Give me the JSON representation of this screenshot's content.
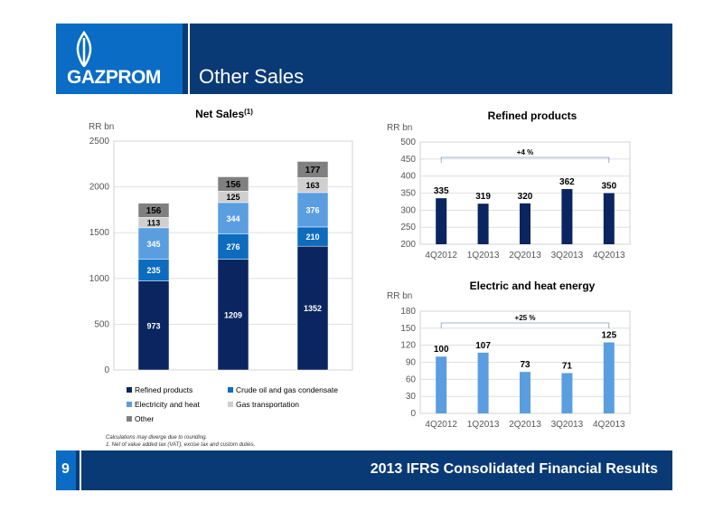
{
  "header": {
    "logo_text": "GAZPROM",
    "title": "Other Sales"
  },
  "footer": {
    "page_number": "9",
    "title": "2013 IFRS Consolidated Financial Results"
  },
  "notes": [
    "Calculations may diverge due to rounding.",
    "1. Net of value added tax (VAT), excise tax and custom duties."
  ],
  "colors": {
    "header_bg": "#0a3a75",
    "logo_bg": "#0a6cc4",
    "refined": "#0a2560",
    "crude": "#0e6cbe",
    "electricity": "#5b9ee0",
    "gas_transport": "#cfcfcf",
    "other": "#808080"
  },
  "chart_data": [
    {
      "type": "bar",
      "stacked": true,
      "title": "Net Sales",
      "title_sup": "(1)",
      "ylabel": "RR bn",
      "ylim": [
        0,
        2500
      ],
      "yticks": [
        "0",
        "500",
        "1000",
        "1500",
        "2000",
        "2500"
      ],
      "grid": true,
      "legend_position": "bottom",
      "categories": [
        "",
        "",
        ""
      ],
      "series": [
        {
          "name": "Refined products",
          "values": [
            973,
            1209,
            1352
          ],
          "labels": [
            "973",
            "1209",
            "1352"
          ],
          "color": "#0a2560"
        },
        {
          "name": "Crude oil and gas condensate",
          "values": [
            235,
            276,
            210
          ],
          "labels": [
            "235",
            "276",
            "210"
          ],
          "color": "#0e6cbe"
        },
        {
          "name": "Electricity and heat",
          "values": [
            345,
            344,
            376
          ],
          "labels": [
            "345",
            "344",
            "376"
          ],
          "color": "#5b9ee0"
        },
        {
          "name": "Gas transportation",
          "values": [
            113,
            125,
            163
          ],
          "labels": [
            "113",
            "125",
            "163"
          ],
          "color": "#cfcfcf"
        },
        {
          "name": "Other",
          "values": [
            156,
            156,
            177
          ],
          "labels": [
            "156",
            "156",
            "177"
          ],
          "color": "#808080"
        }
      ]
    },
    {
      "type": "bar",
      "title": "Refined products",
      "ylabel": "RR bn",
      "ylim": [
        200,
        500
      ],
      "yticks": [
        "200",
        "250",
        "300",
        "350",
        "400",
        "450",
        "500"
      ],
      "grid": true,
      "categories": [
        "4Q2012",
        "1Q2013",
        "2Q2013",
        "3Q2013",
        "4Q2013"
      ],
      "values": [
        335,
        319,
        320,
        362,
        350
      ],
      "labels": [
        "335",
        "319",
        "320",
        "362",
        "350"
      ],
      "color": "#0a2560",
      "annotation": "+4 %"
    },
    {
      "type": "bar",
      "title": "Electric and heat energy",
      "ylabel": "RR bn",
      "ylim": [
        0,
        180
      ],
      "yticks": [
        "0",
        "30",
        "60",
        "90",
        "120",
        "150",
        "180"
      ],
      "grid": true,
      "categories": [
        "4Q2012",
        "1Q2013",
        "2Q2013",
        "3Q2013",
        "4Q2013"
      ],
      "values": [
        100,
        107,
        73,
        71,
        125
      ],
      "labels": [
        "100",
        "107",
        "73",
        "71",
        "125"
      ],
      "color": "#5b9ee0",
      "annotation": "+25 %"
    }
  ]
}
